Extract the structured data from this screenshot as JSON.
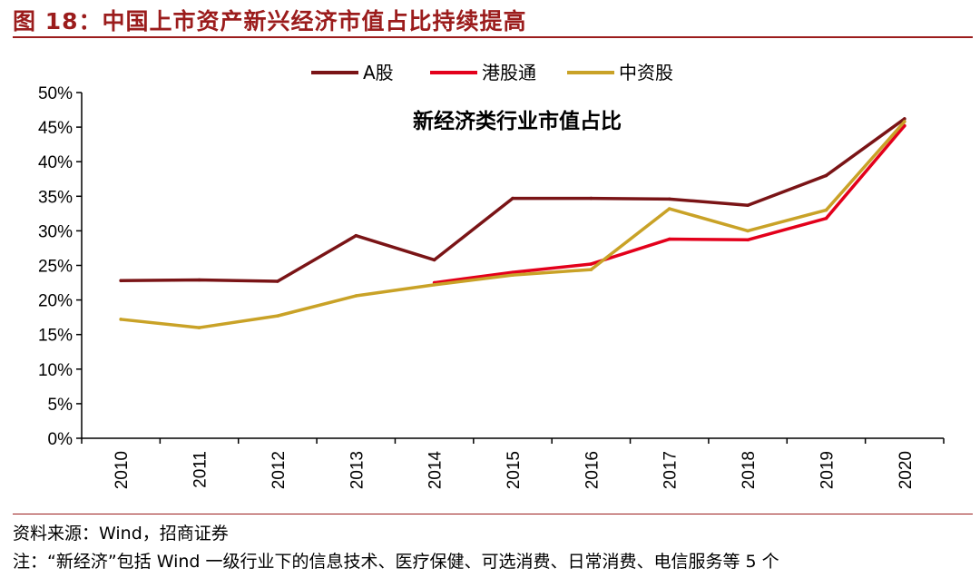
{
  "figure": {
    "title": "图 18：中国上市资产新兴经济市值占比持续提高",
    "source": "资料来源：Wind，招商证券",
    "note": "注：“新经济”包括 Wind 一级行业下的信息技术、医疗保健、可选消费、日常消费、电信服务等 5 个"
  },
  "colors": {
    "accent": "#9b1c1c",
    "a_share": "#7a1416",
    "hk_connect": "#e3001b",
    "chinese_stocks": "#c9a227"
  },
  "chart_data": {
    "type": "line",
    "title": "新经济类行业市值占比",
    "categories": [
      "2010",
      "2011",
      "2012",
      "2013",
      "2014",
      "2015",
      "2016",
      "2017",
      "2018",
      "2019",
      "2020"
    ],
    "ylim": [
      0,
      50
    ],
    "yticks": [
      "0%",
      "5%",
      "10%",
      "15%",
      "20%",
      "25%",
      "30%",
      "35%",
      "40%",
      "45%",
      "50%"
    ],
    "ytick_values": [
      0,
      5,
      10,
      15,
      20,
      25,
      30,
      35,
      40,
      45,
      50
    ],
    "legend_position": "top-center",
    "grid": false,
    "series": [
      {
        "name": "A股",
        "color_key": "a_share",
        "values": [
          22.8,
          22.9,
          22.7,
          29.3,
          25.8,
          34.7,
          34.7,
          34.6,
          33.7,
          38.0,
          46.2
        ]
      },
      {
        "name": "港股通",
        "color_key": "hk_connect",
        "values": [
          null,
          null,
          null,
          null,
          22.5,
          24.0,
          25.2,
          28.8,
          28.7,
          31.8,
          45.2
        ]
      },
      {
        "name": "中资股",
        "color_key": "chinese_stocks",
        "values": [
          17.2,
          16.0,
          17.7,
          20.6,
          22.2,
          23.6,
          24.4,
          33.2,
          30.0,
          33.0,
          45.8
        ]
      }
    ]
  }
}
